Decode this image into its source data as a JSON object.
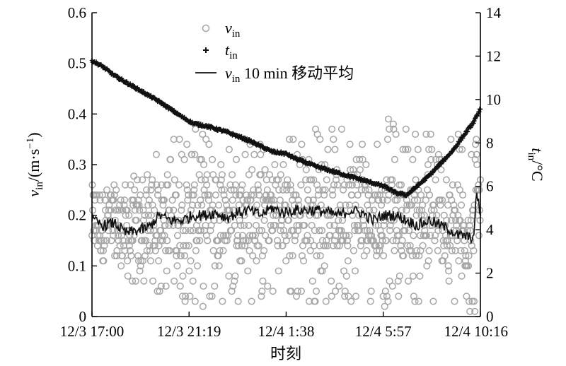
{
  "chart_data": {
    "type": "scatter",
    "xlabel": "时刻",
    "ylabel_left": "v_in/(m·s⁻¹)",
    "ylabel_right": "t_in/°C",
    "xlim": [
      0,
      17.27
    ],
    "ylim_left": [
      0,
      0.6
    ],
    "ylim_right": [
      0,
      14
    ],
    "x_ticks": [
      {
        "value": 0,
        "label": "12/3 17:00"
      },
      {
        "value": 4.317,
        "label": "12/3 21:19"
      },
      {
        "value": 8.633,
        "label": "12/4 1:38"
      },
      {
        "value": 12.95,
        "label": "12/4 5:57"
      },
      {
        "value": 17.267,
        "label": "12/4 10:16"
      }
    ],
    "y_ticks_left": [
      "0",
      "0.1",
      "0.2",
      "0.3",
      "0.4",
      "0.5",
      "0.6"
    ],
    "y_ticks_right": [
      "0",
      "2",
      "4",
      "6",
      "8",
      "10",
      "12",
      "14"
    ],
    "legend": {
      "placement": "top-center",
      "entries": [
        {
          "name": "v_in",
          "marker": "circle"
        },
        {
          "name": "t_in",
          "marker": "plus"
        },
        {
          "name": "v_in 10 min 移动平均",
          "marker": "line"
        }
      ]
    },
    "colors": {
      "v_in": "#a6a6a6",
      "t_in": "#111111",
      "v_in_ma": "#111111"
    },
    "series": [
      {
        "name": "v_in",
        "axis": "left",
        "style": "open-circle",
        "band_anchors_x": [
          0,
          1,
          2,
          3,
          4,
          5,
          6,
          7,
          8,
          9,
          10,
          11,
          12,
          13,
          14,
          15,
          16,
          17,
          17.27
        ],
        "band_low": [
          0.12,
          0.1,
          0.05,
          0.03,
          0.03,
          0.02,
          0.03,
          0.02,
          0.03,
          0.02,
          0.03,
          0.02,
          0.03,
          0.02,
          0.03,
          0.02,
          0.0,
          0.0,
          0.0
        ],
        "band_high": [
          0.26,
          0.26,
          0.28,
          0.33,
          0.38,
          0.37,
          0.35,
          0.35,
          0.35,
          0.37,
          0.38,
          0.38,
          0.37,
          0.39,
          0.39,
          0.38,
          0.37,
          0.38,
          0.48
        ],
        "n_points": 1040
      },
      {
        "name": "t_in",
        "axis": "right",
        "style": "plus",
        "x": [
          0,
          0.5,
          1,
          2,
          3,
          4,
          4.5,
          5,
          6,
          7,
          8,
          8.63,
          9,
          10,
          11,
          12,
          13,
          13.5,
          14,
          15,
          16,
          16.5,
          17,
          17.27
        ],
        "y": [
          11.8,
          11.5,
          11.1,
          10.5,
          9.9,
          9.2,
          8.9,
          8.8,
          8.5,
          8.1,
          7.6,
          7.5,
          7.3,
          6.9,
          6.6,
          6.3,
          6.0,
          5.7,
          5.6,
          6.5,
          7.6,
          8.3,
          9.0,
          9.6
        ],
        "n_points": 640
      },
      {
        "name": "v_in 10 min 移动平均",
        "axis": "left",
        "style": "line",
        "x": [
          0,
          0.5,
          1,
          1.5,
          2,
          2.5,
          3,
          3.5,
          4,
          4.5,
          5,
          5.5,
          6,
          6.5,
          7,
          7.5,
          8,
          8.5,
          9,
          9.5,
          10,
          10.5,
          11,
          11.5,
          12,
          12.5,
          13,
          13.5,
          14,
          14.5,
          15,
          15.5,
          16,
          16.2,
          16.5,
          16.8,
          17,
          17.1,
          17.27
        ],
        "y": [
          0.19,
          0.18,
          0.185,
          0.165,
          0.17,
          0.175,
          0.2,
          0.19,
          0.19,
          0.2,
          0.2,
          0.205,
          0.195,
          0.205,
          0.21,
          0.2,
          0.215,
          0.205,
          0.21,
          0.21,
          0.21,
          0.205,
          0.2,
          0.21,
          0.205,
          0.19,
          0.2,
          0.2,
          0.19,
          0.18,
          0.19,
          0.18,
          0.17,
          0.16,
          0.16,
          0.155,
          0.16,
          0.25,
          0.2
        ]
      }
    ]
  }
}
